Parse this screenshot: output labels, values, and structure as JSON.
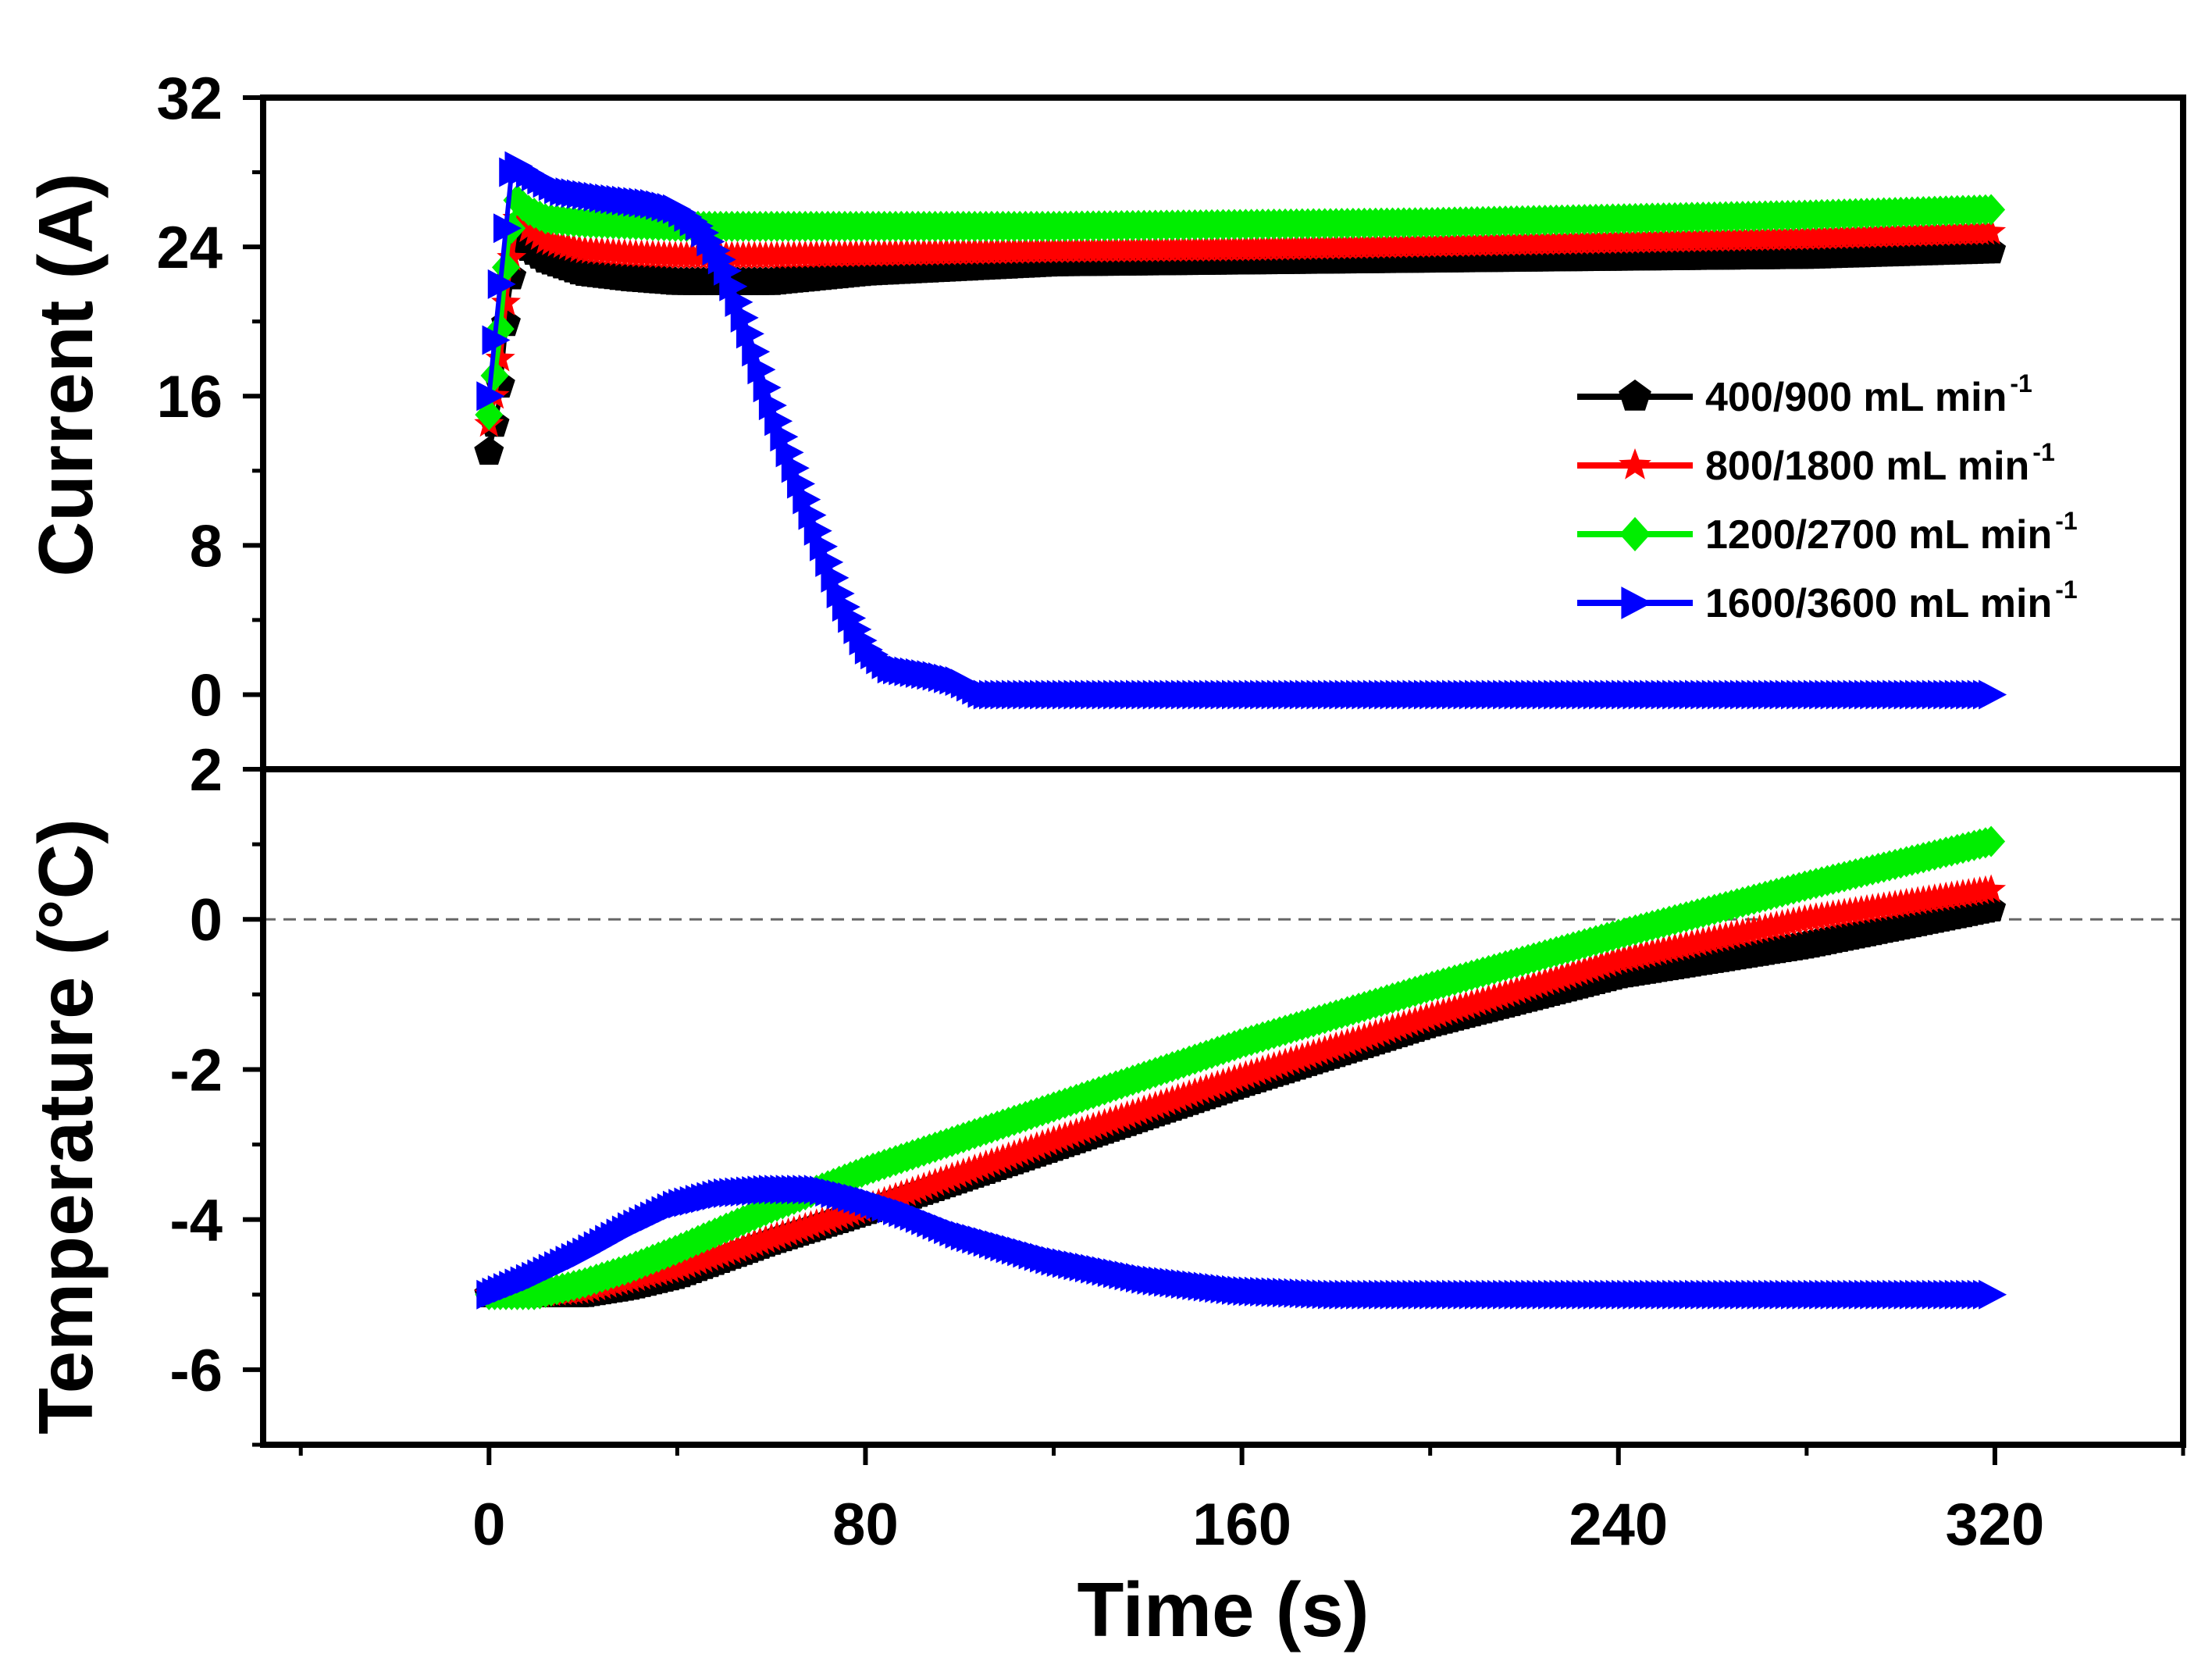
{
  "chart_data": {
    "type": "line",
    "xlabel": "Time (s)",
    "xlim": [
      -48,
      360
    ],
    "xticks": [
      0,
      80,
      160,
      240,
      320
    ],
    "xtick_labels": [
      "0",
      "80",
      "160",
      "240",
      "320"
    ],
    "panels": [
      {
        "id": "current",
        "ylabel": "Current (A)",
        "ylim": [
          -4,
          32
        ],
        "yticks": [
          0,
          8,
          16,
          24,
          32
        ],
        "ytick_labels": [
          "0",
          "8",
          "16",
          "24",
          "32"
        ],
        "reference_line": null,
        "series": [
          {
            "name": "400/900 mL min",
            "marker": "pentagon",
            "x": [
              0,
              2,
              4,
              6,
              8,
              12,
              20,
              30,
              40,
              50,
              60,
              80,
              120,
              160,
              200,
              240,
              280,
              320
            ],
            "y": [
              13,
              15.5,
              21,
              24.5,
              24,
              23.3,
              22.6,
              22.3,
              22.1,
              22.1,
              22.1,
              22.6,
              23.1,
              23.2,
              23.3,
              23.4,
              23.5,
              23.8
            ]
          },
          {
            "name": "800/1800 mL min",
            "marker": "star",
            "x": [
              0,
              2,
              4,
              6,
              8,
              12,
              20,
              30,
              40,
              50,
              60,
              80,
              120,
              160,
              200,
              240,
              280,
              320
            ],
            "y": [
              14.5,
              17,
              22,
              25.5,
              25,
              24.3,
              23.8,
              23.6,
              23.5,
              23.5,
              23.5,
              23.6,
              23.8,
              23.9,
              24.1,
              24.3,
              24.5,
              24.8
            ]
          },
          {
            "name": "1200/2700 mL min",
            "marker": "diamond",
            "x": [
              0,
              2,
              4,
              6,
              8,
              12,
              20,
              30,
              40,
              50,
              60,
              80,
              120,
              160,
              200,
              240,
              280,
              320
            ],
            "y": [
              15,
              18.5,
              24,
              26.5,
              26,
              25.5,
              25.3,
              25.2,
              25.1,
              25.1,
              25.1,
              25.1,
              25.1,
              25.2,
              25.3,
              25.5,
              25.7,
              26
            ]
          },
          {
            "name": "1600/3600 mL min",
            "marker": "triangle-right",
            "x": [
              0,
              2,
              4,
              5,
              8,
              15,
              25,
              35,
              40,
              45,
              50,
              55,
              60,
              65,
              70,
              75,
              80,
              85,
              95,
              100,
              105,
              160,
              240,
              320
            ],
            "y": [
              16,
              21,
              26,
              28.5,
              28,
              27,
              26.6,
              26.3,
              26,
              25,
              23,
              19.5,
              15.5,
              12,
              8.5,
              5,
              2.5,
              1.4,
              1,
              0.7,
              0,
              0,
              0,
              0
            ]
          }
        ]
      },
      {
        "id": "temperature",
        "ylabel": "Temperature (°C)",
        "ylim": [
          -7,
          2
        ],
        "yticks": [
          -6,
          -4,
          -2,
          0,
          2
        ],
        "ytick_labels": [
          "-6",
          "-4",
          "-2",
          "0",
          "2"
        ],
        "reference_line": {
          "y": 0,
          "style": "dashed"
        },
        "series": [
          {
            "name": "400/900 mL min",
            "marker": "pentagon",
            "x": [
              0,
              10,
              20,
              30,
              40,
              60,
              80,
              120,
              160,
              200,
              240,
              280,
              320
            ],
            "y": [
              -5,
              -5,
              -5,
              -4.9,
              -4.75,
              -4.3,
              -3.9,
              -3.05,
              -2.2,
              -1.4,
              -0.75,
              -0.35,
              0.15
            ]
          },
          {
            "name": "800/1800 mL min",
            "marker": "star",
            "x": [
              0,
              10,
              20,
              30,
              40,
              60,
              80,
              120,
              160,
              200,
              240,
              280,
              320
            ],
            "y": [
              -5,
              -5,
              -4.95,
              -4.8,
              -4.65,
              -4.25,
              -3.85,
              -2.95,
              -2.1,
              -1.3,
              -0.55,
              0,
              0.4
            ]
          },
          {
            "name": "1200/2700 mL min",
            "marker": "diamond",
            "x": [
              0,
              10,
              20,
              30,
              40,
              60,
              80,
              120,
              160,
              200,
              240,
              280,
              320
            ],
            "y": [
              -5,
              -5,
              -4.85,
              -4.65,
              -4.4,
              -3.85,
              -3.35,
              -2.5,
              -1.65,
              -0.9,
              -0.2,
              0.45,
              1.05
            ]
          },
          {
            "name": "1600/3600 mL min",
            "marker": "triangle-right",
            "x": [
              0,
              10,
              20,
              30,
              40,
              50,
              60,
              70,
              80,
              90,
              100,
              120,
              140,
              160,
              180,
              240,
              320
            ],
            "y": [
              -5,
              -4.75,
              -4.45,
              -4.1,
              -3.8,
              -3.65,
              -3.6,
              -3.6,
              -3.75,
              -3.95,
              -4.2,
              -4.55,
              -4.8,
              -4.95,
              -5,
              -5,
              -5
            ]
          }
        ]
      }
    ],
    "legend": {
      "placement": "upper-right of current panel",
      "entries": [
        {
          "label": "400/900 mL min",
          "sup": "-1",
          "color": "#000000",
          "marker": "pentagon"
        },
        {
          "label": "800/1800 mL min",
          "sup": "-1",
          "color": "#ff0000",
          "marker": "star"
        },
        {
          "label": "1200/2700 mL min",
          "sup": "-1",
          "color": "#00ee00",
          "marker": "diamond"
        },
        {
          "label": "1600/3600 mL min",
          "sup": "-1",
          "color": "#0000ff",
          "marker": "triangle-right"
        }
      ]
    },
    "colors": [
      "#000000",
      "#ff0000",
      "#00ee00",
      "#0000ff"
    ],
    "grid": false
  }
}
